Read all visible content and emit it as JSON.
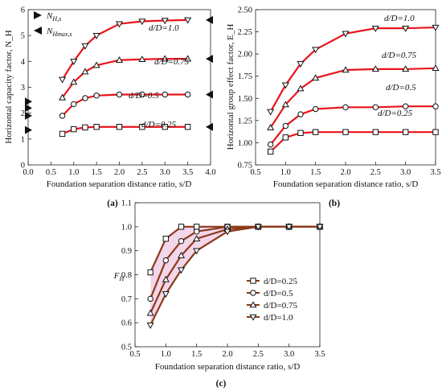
{
  "chart_data": [
    {
      "type": "line",
      "panel_label": "(a)",
      "xlabel": "Foundation separation distance ratio, s/D",
      "ylabel": "Horizontal capacity factor, N_H",
      "xlim": [
        0,
        4
      ],
      "ylim": [
        0,
        6
      ],
      "xticks": [
        "0.0",
        "0.5",
        "1.0",
        "1.5",
        "2.0",
        "2.5",
        "3.0",
        "3.5",
        "4.0"
      ],
      "yticks": [
        "0",
        "1",
        "2",
        "3",
        "4",
        "5",
        "6"
      ],
      "legend": [
        {
          "name": "N_H,s",
          "marker": "right-triangle"
        },
        {
          "name": "N_Hmax,s",
          "marker": "left-triangle"
        }
      ],
      "x": [
        0.75,
        1.0,
        1.25,
        1.5,
        2.0,
        2.5,
        3.0,
        3.5
      ],
      "series": [
        {
          "name": "d/D=1.0",
          "marker": "down-triangle",
          "values": [
            3.3,
            4.0,
            4.6,
            5.0,
            5.45,
            5.55,
            5.58,
            5.6
          ]
        },
        {
          "name": "d/D=0.75",
          "marker": "up-triangle",
          "values": [
            2.6,
            3.2,
            3.6,
            3.85,
            4.05,
            4.08,
            4.1,
            4.1
          ]
        },
        {
          "name": "d/D=0.5",
          "marker": "circle",
          "values": [
            1.9,
            2.35,
            2.58,
            2.68,
            2.72,
            2.72,
            2.72,
            2.72
          ]
        },
        {
          "name": "d/D=0.25",
          "marker": "square",
          "values": [
            1.2,
            1.38,
            1.45,
            1.47,
            1.47,
            1.47,
            1.47,
            1.47
          ]
        }
      ],
      "Ns_markers": [
        1.35,
        1.9,
        2.2,
        2.45
      ],
      "Nmax_markers": [
        {
          "series": "d/D=1.0",
          "value": 5.6
        },
        {
          "series": "d/D=0.75",
          "value": 4.1
        },
        {
          "series": "d/D=0.5",
          "value": 2.72
        },
        {
          "series": "d/D=0.25",
          "value": 1.47
        }
      ]
    },
    {
      "type": "line",
      "panel_label": "(b)",
      "xlabel": "Foundation separation distance ratio, s/D",
      "ylabel": "Horizontal group effect factor, E_H",
      "xlim": [
        0.5,
        3.5
      ],
      "ylim": [
        0.75,
        2.5
      ],
      "xticks": [
        "0.5",
        "1.0",
        "1.5",
        "2.0",
        "2.5",
        "3.0",
        "3.5"
      ],
      "yticks": [
        "0.75",
        "1.00",
        "1.25",
        "1.50",
        "1.75",
        "2.00",
        "2.25",
        "2.50"
      ],
      "x": [
        0.75,
        1.0,
        1.25,
        1.5,
        2.0,
        2.5,
        3.0,
        3.5
      ],
      "series": [
        {
          "name": "d/D=1.0",
          "marker": "down-triangle",
          "values": [
            1.35,
            1.65,
            1.89,
            2.05,
            2.23,
            2.29,
            2.29,
            2.3
          ]
        },
        {
          "name": "d/D=0.75",
          "marker": "up-triangle",
          "values": [
            1.17,
            1.43,
            1.61,
            1.73,
            1.82,
            1.83,
            1.83,
            1.84
          ]
        },
        {
          "name": "d/D=0.5",
          "marker": "circle",
          "values": [
            0.98,
            1.19,
            1.32,
            1.38,
            1.4,
            1.4,
            1.41,
            1.41
          ]
        },
        {
          "name": "d/D=0.25",
          "marker": "square",
          "values": [
            0.9,
            1.06,
            1.11,
            1.12,
            1.12,
            1.12,
            1.12,
            1.12
          ]
        }
      ]
    },
    {
      "type": "line",
      "panel_label": "(c)",
      "xlabel": "Foundation separation distance ratio, s/D",
      "ylabel": "F_H",
      "xlim": [
        0.5,
        3.5
      ],
      "ylim": [
        0.5,
        1.1
      ],
      "xticks": [
        "0.5",
        "1.0",
        "1.5",
        "2.0",
        "2.5",
        "3.0",
        "3.5"
      ],
      "yticks": [
        "0.5",
        "0.6",
        "0.7",
        "0.8",
        "0.9",
        "1.0",
        "1.1"
      ],
      "x": [
        0.75,
        1.0,
        1.25,
        1.5,
        2.0,
        2.5,
        3.0,
        3.5
      ],
      "series": [
        {
          "name": "d/D=0.25",
          "marker": "square",
          "values": [
            0.81,
            0.95,
            1.0,
            1.0,
            1.0,
            1.0,
            1.0,
            1.0
          ]
        },
        {
          "name": "d/D=0.5",
          "marker": "circle",
          "values": [
            0.7,
            0.86,
            0.94,
            0.98,
            1.0,
            1.0,
            1.0,
            1.0
          ]
        },
        {
          "name": "d/D=0.75",
          "marker": "up-triangle",
          "values": [
            0.64,
            0.78,
            0.88,
            0.95,
            0.99,
            1.0,
            1.0,
            1.0
          ]
        },
        {
          "name": "d/D=1.0",
          "marker": "down-triangle",
          "values": [
            0.59,
            0.72,
            0.82,
            0.9,
            0.98,
            1.0,
            1.0,
            1.0
          ]
        }
      ]
    }
  ],
  "colors": {
    "line_ab": "#e8141b",
    "line_c": "#8b3a1a",
    "band_c": "#f2cfe6",
    "frame": "#222222"
  }
}
